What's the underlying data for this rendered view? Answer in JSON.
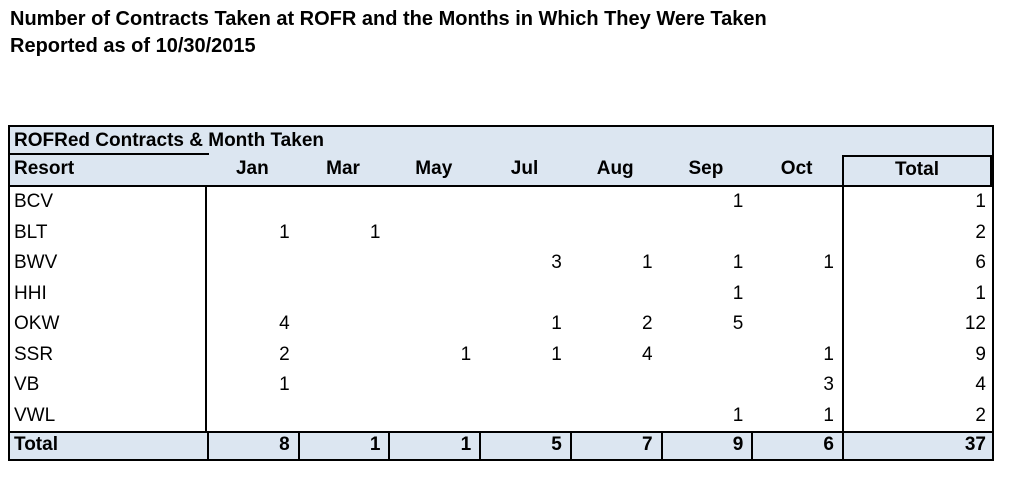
{
  "title": {
    "line1": "Number of Contracts Taken at ROFR and the Months in Which They Were Taken",
    "line2": "Reported as of 10/30/2015"
  },
  "table": {
    "header": "ROFRed Contracts & Month Taken",
    "columns": [
      "Resort",
      "Jan",
      "Mar",
      "May",
      "Jul",
      "Aug",
      "Sep",
      "Oct",
      "Total"
    ],
    "rows": [
      {
        "resort": "BCV",
        "values": [
          "",
          "",
          "",
          "",
          "",
          "1",
          "",
          "1"
        ]
      },
      {
        "resort": "BLT",
        "values": [
          "1",
          "1",
          "",
          "",
          "",
          "",
          "",
          "2"
        ]
      },
      {
        "resort": "BWV",
        "values": [
          "",
          "",
          "",
          "3",
          "1",
          "1",
          "1",
          "6"
        ]
      },
      {
        "resort": "HHI",
        "values": [
          "",
          "",
          "",
          "",
          "",
          "1",
          "",
          "1"
        ]
      },
      {
        "resort": "OKW",
        "values": [
          "4",
          "",
          "",
          "1",
          "2",
          "5",
          "",
          "12"
        ]
      },
      {
        "resort": "SSR",
        "values": [
          "2",
          "",
          "1",
          "1",
          "4",
          "",
          "1",
          "9"
        ]
      },
      {
        "resort": "VB",
        "values": [
          "1",
          "",
          "",
          "",
          "",
          "",
          "3",
          "4"
        ]
      },
      {
        "resort": "VWL",
        "values": [
          "",
          "",
          "",
          "",
          "",
          "1",
          "1",
          "2"
        ]
      }
    ],
    "total_row": {
      "label": "Total",
      "values": [
        "8",
        "1",
        "1",
        "5",
        "7",
        "9",
        "6",
        "37"
      ]
    }
  },
  "colors": {
    "header_bg": "#DCE6F1",
    "border": "#000000",
    "text": "#000000",
    "page_bg": "#FFFFFF"
  },
  "chart_data": {
    "type": "table",
    "title": "Number of Contracts Taken at ROFR and the Months in Which They Were Taken",
    "subtitle": "Reported as of 10/30/2015",
    "columns": [
      "Resort",
      "Jan",
      "Mar",
      "May",
      "Jul",
      "Aug",
      "Sep",
      "Oct",
      "Total"
    ],
    "rows": [
      [
        "BCV",
        null,
        null,
        null,
        null,
        null,
        1,
        null,
        1
      ],
      [
        "BLT",
        1,
        1,
        null,
        null,
        null,
        null,
        null,
        2
      ],
      [
        "BWV",
        null,
        null,
        null,
        3,
        1,
        1,
        1,
        6
      ],
      [
        "HHI",
        null,
        null,
        null,
        null,
        null,
        1,
        null,
        1
      ],
      [
        "OKW",
        4,
        null,
        null,
        1,
        2,
        5,
        null,
        12
      ],
      [
        "SSR",
        2,
        null,
        1,
        1,
        4,
        null,
        1,
        9
      ],
      [
        "VB",
        1,
        null,
        null,
        null,
        null,
        null,
        3,
        4
      ],
      [
        "VWL",
        null,
        null,
        null,
        null,
        null,
        1,
        1,
        2
      ],
      [
        "Total",
        8,
        1,
        1,
        5,
        7,
        9,
        6,
        37
      ]
    ]
  }
}
